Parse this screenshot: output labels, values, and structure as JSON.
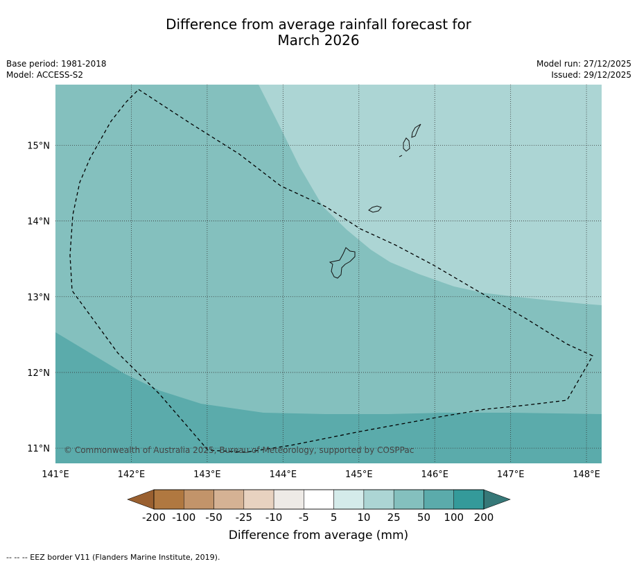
{
  "title": {
    "line1": "Difference from average rainfall forecast for",
    "line2": "March 2026"
  },
  "meta": {
    "base_period": "Base period: 1981-2018",
    "model": "Model: ACCESS-S2",
    "model_run": "Model run: 27/12/2025",
    "issued": "Issued: 29/12/2025"
  },
  "map": {
    "lat_labels": [
      "15°N",
      "14°N",
      "13°N",
      "12°N",
      "11°N"
    ],
    "lat_values": [
      15,
      14,
      13,
      12,
      11
    ],
    "lon_labels": [
      "141°E",
      "142°E",
      "143°E",
      "144°E",
      "145°E",
      "146°E",
      "147°E",
      "148°E"
    ],
    "lon_values": [
      141,
      142,
      143,
      144,
      145,
      146,
      147,
      148
    ],
    "extent": {
      "lon": [
        141.0,
        148.2
      ],
      "lat": [
        10.8,
        15.8
      ]
    },
    "copyright": "© Commonwealth of Australia 2025, Bureau of Meteorology, supported by COSPPac",
    "zone_colors": {
      "10_25": "#acd5d4",
      "25_50": "#84c0be",
      "50_100": "#5babab"
    }
  },
  "colorbar": {
    "labels": [
      "-200",
      "-100",
      "-50",
      "-25",
      "-10",
      "-5",
      "5",
      "10",
      "25",
      "50",
      "100",
      "200"
    ],
    "colors": [
      "#b07840",
      "#c2946a",
      "#d5b294",
      "#e8d2c0",
      "#eeeae6",
      "#ffffff",
      "#d4ebea",
      "#acd5d4",
      "#84c0be",
      "#5babab",
      "#349a9a"
    ],
    "low_extend_color": "#9a6030",
    "high_extend_color": "#367878",
    "title": "Difference from average (mm)"
  },
  "footnote": "--  --  -- EEZ border V11 (Flanders Marine Institute, 2019)."
}
